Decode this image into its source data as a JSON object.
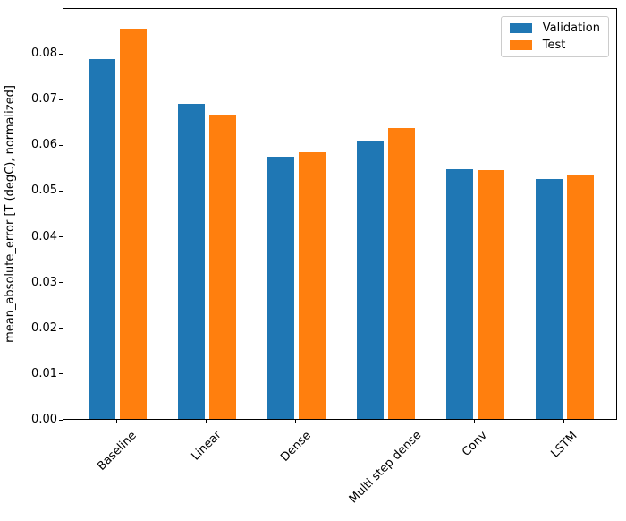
{
  "figure": {
    "background": "#ffffff",
    "text_color": "#000000",
    "spine_color": "#000000"
  },
  "chart_data": {
    "type": "bar",
    "title": "",
    "categories": [
      "Baseline",
      "Linear",
      "Dense",
      "Multi step dense",
      "Conv",
      "LSTM"
    ],
    "series": [
      {
        "name": "Validation",
        "color": "#1f77b4",
        "values": [
          0.0786,
          0.0689,
          0.0574,
          0.0608,
          0.0546,
          0.0525
        ]
      },
      {
        "name": "Test",
        "color": "#ff7f0e",
        "values": [
          0.0854,
          0.0664,
          0.0584,
          0.0635,
          0.0544,
          0.0534
        ]
      }
    ],
    "xlabel": "",
    "ylabel": "mean_absolute_error [T (degC), normalized]",
    "ylim": [
      0,
      0.09
    ],
    "yticks": [
      "0.00",
      "0.01",
      "0.02",
      "0.03",
      "0.04",
      "0.05",
      "0.06",
      "0.07",
      "0.08"
    ],
    "xtick_rotation_deg": 45,
    "grid": false,
    "legend": {
      "position": "upper right",
      "entries": [
        "Validation",
        "Test"
      ],
      "border_color": "#cccccc"
    }
  }
}
